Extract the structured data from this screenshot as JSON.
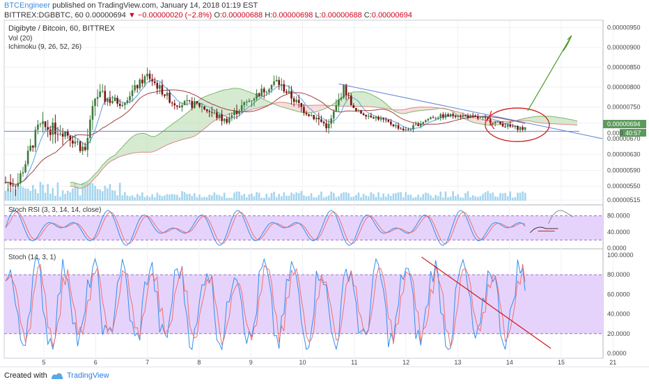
{
  "header": {
    "author": "BTCEngineer",
    "published_text": " published on TradingView.com, January 14, 2018 01:19 EST",
    "symbol": "BITTREX:DGBBTC, 60",
    "last": "0.00000694",
    "change": "−0.00000020 (−2.8%)",
    "o_label": "O:",
    "o_value": "0.00000688",
    "h_label": "H:",
    "h_value": "0.00000698",
    "l_label": "L:",
    "l_value": "0.00000688",
    "c_label": "C:",
    "c_value": "0.00000694"
  },
  "colors": {
    "up": "#3a7a3a",
    "down": "#7a1010",
    "rsi_band": "#e6d3fb",
    "stoch_k": "#2f8fef",
    "stoch_d": "#ef6f6f",
    "trend_blue": "#5b84d6",
    "annotation_red": "#d01818",
    "annotation_green": "#4d9a2a",
    "cloud_green": "#b9dcb0",
    "cloud_red": "#f2c6c4",
    "volume": "#8fcbe8"
  },
  "main_pane": {
    "title": "Digibyte / Bitcoin, 60, BITTREX",
    "vol_label": "Vol (20)",
    "ichimoku_label": "Ichimoku (9, 26, 52, 26)",
    "price_axis": [
      "0.00000950",
      "0.00000900",
      "0.00000850",
      "0.00000800",
      "0.00000750",
      "0.00000710",
      "0.00000670",
      "0.00000630",
      "0.00000590",
      "0.00000550",
      "0.00000515"
    ],
    "last_price_tag": "0.00000694",
    "timer_tag": "40:57",
    "cut_tick": "0.000"
  },
  "rsi_pane": {
    "label": "Stoch RSI (3, 3, 14, 14, close)",
    "axis": [
      "80.0000",
      "40.0000",
      "0.0000"
    ]
  },
  "stoch_pane": {
    "label": "Stoch (14, 3, 1)",
    "axis": [
      "100.0000",
      "80.0000",
      "60.0000",
      "40.0000",
      "20.0000",
      "0.0000"
    ]
  },
  "time_axis": [
    "5",
    "6",
    "7",
    "8",
    "9",
    "10",
    "11",
    "12",
    "13",
    "14",
    "15",
    "21"
  ],
  "footer": {
    "created_with": "Created with",
    "brand": "TradingView"
  },
  "chart_data": {
    "type": "candlestick",
    "title": "Digibyte / Bitcoin, 60, BITTREX",
    "x_axis_days": [
      "5",
      "6",
      "7",
      "8",
      "9",
      "10",
      "11",
      "12",
      "13",
      "14",
      "15"
    ],
    "ylim": [
      5.1e-06,
      9.6e-06
    ],
    "price_path": [
      {
        "day": 4.5,
        "price": 5.6e-06
      },
      {
        "day": 4.9,
        "price": 7e-06
      },
      {
        "day": 5.4,
        "price": 6.9e-06
      },
      {
        "day": 5.8,
        "price": 6.4e-06
      },
      {
        "day": 6.0,
        "price": 7.8e-06
      },
      {
        "day": 6.5,
        "price": 7.6e-06
      },
      {
        "day": 7.0,
        "price": 8.3e-06
      },
      {
        "day": 7.5,
        "price": 7.6e-06
      },
      {
        "day": 8.0,
        "price": 7.55e-06
      },
      {
        "day": 8.5,
        "price": 7.15e-06
      },
      {
        "day": 9.0,
        "price": 7.7e-06
      },
      {
        "day": 9.5,
        "price": 8.15e-06
      },
      {
        "day": 10.0,
        "price": 7.45e-06
      },
      {
        "day": 10.5,
        "price": 7e-06
      },
      {
        "day": 10.8,
        "price": 8e-06
      },
      {
        "day": 11.0,
        "price": 7.4e-06
      },
      {
        "day": 11.5,
        "price": 7.2e-06
      },
      {
        "day": 12.0,
        "price": 6.9e-06
      },
      {
        "day": 12.5,
        "price": 7.25e-06
      },
      {
        "day": 13.0,
        "price": 7.3e-06
      },
      {
        "day": 13.5,
        "price": 7.2e-06
      },
      {
        "day": 14.0,
        "price": 7e-06
      },
      {
        "day": 14.3,
        "price": 6.94e-06
      }
    ],
    "support_level": 6.94e-06,
    "stoch_rsi_band": [
      20,
      80
    ],
    "stoch_band": [
      20,
      80
    ]
  }
}
